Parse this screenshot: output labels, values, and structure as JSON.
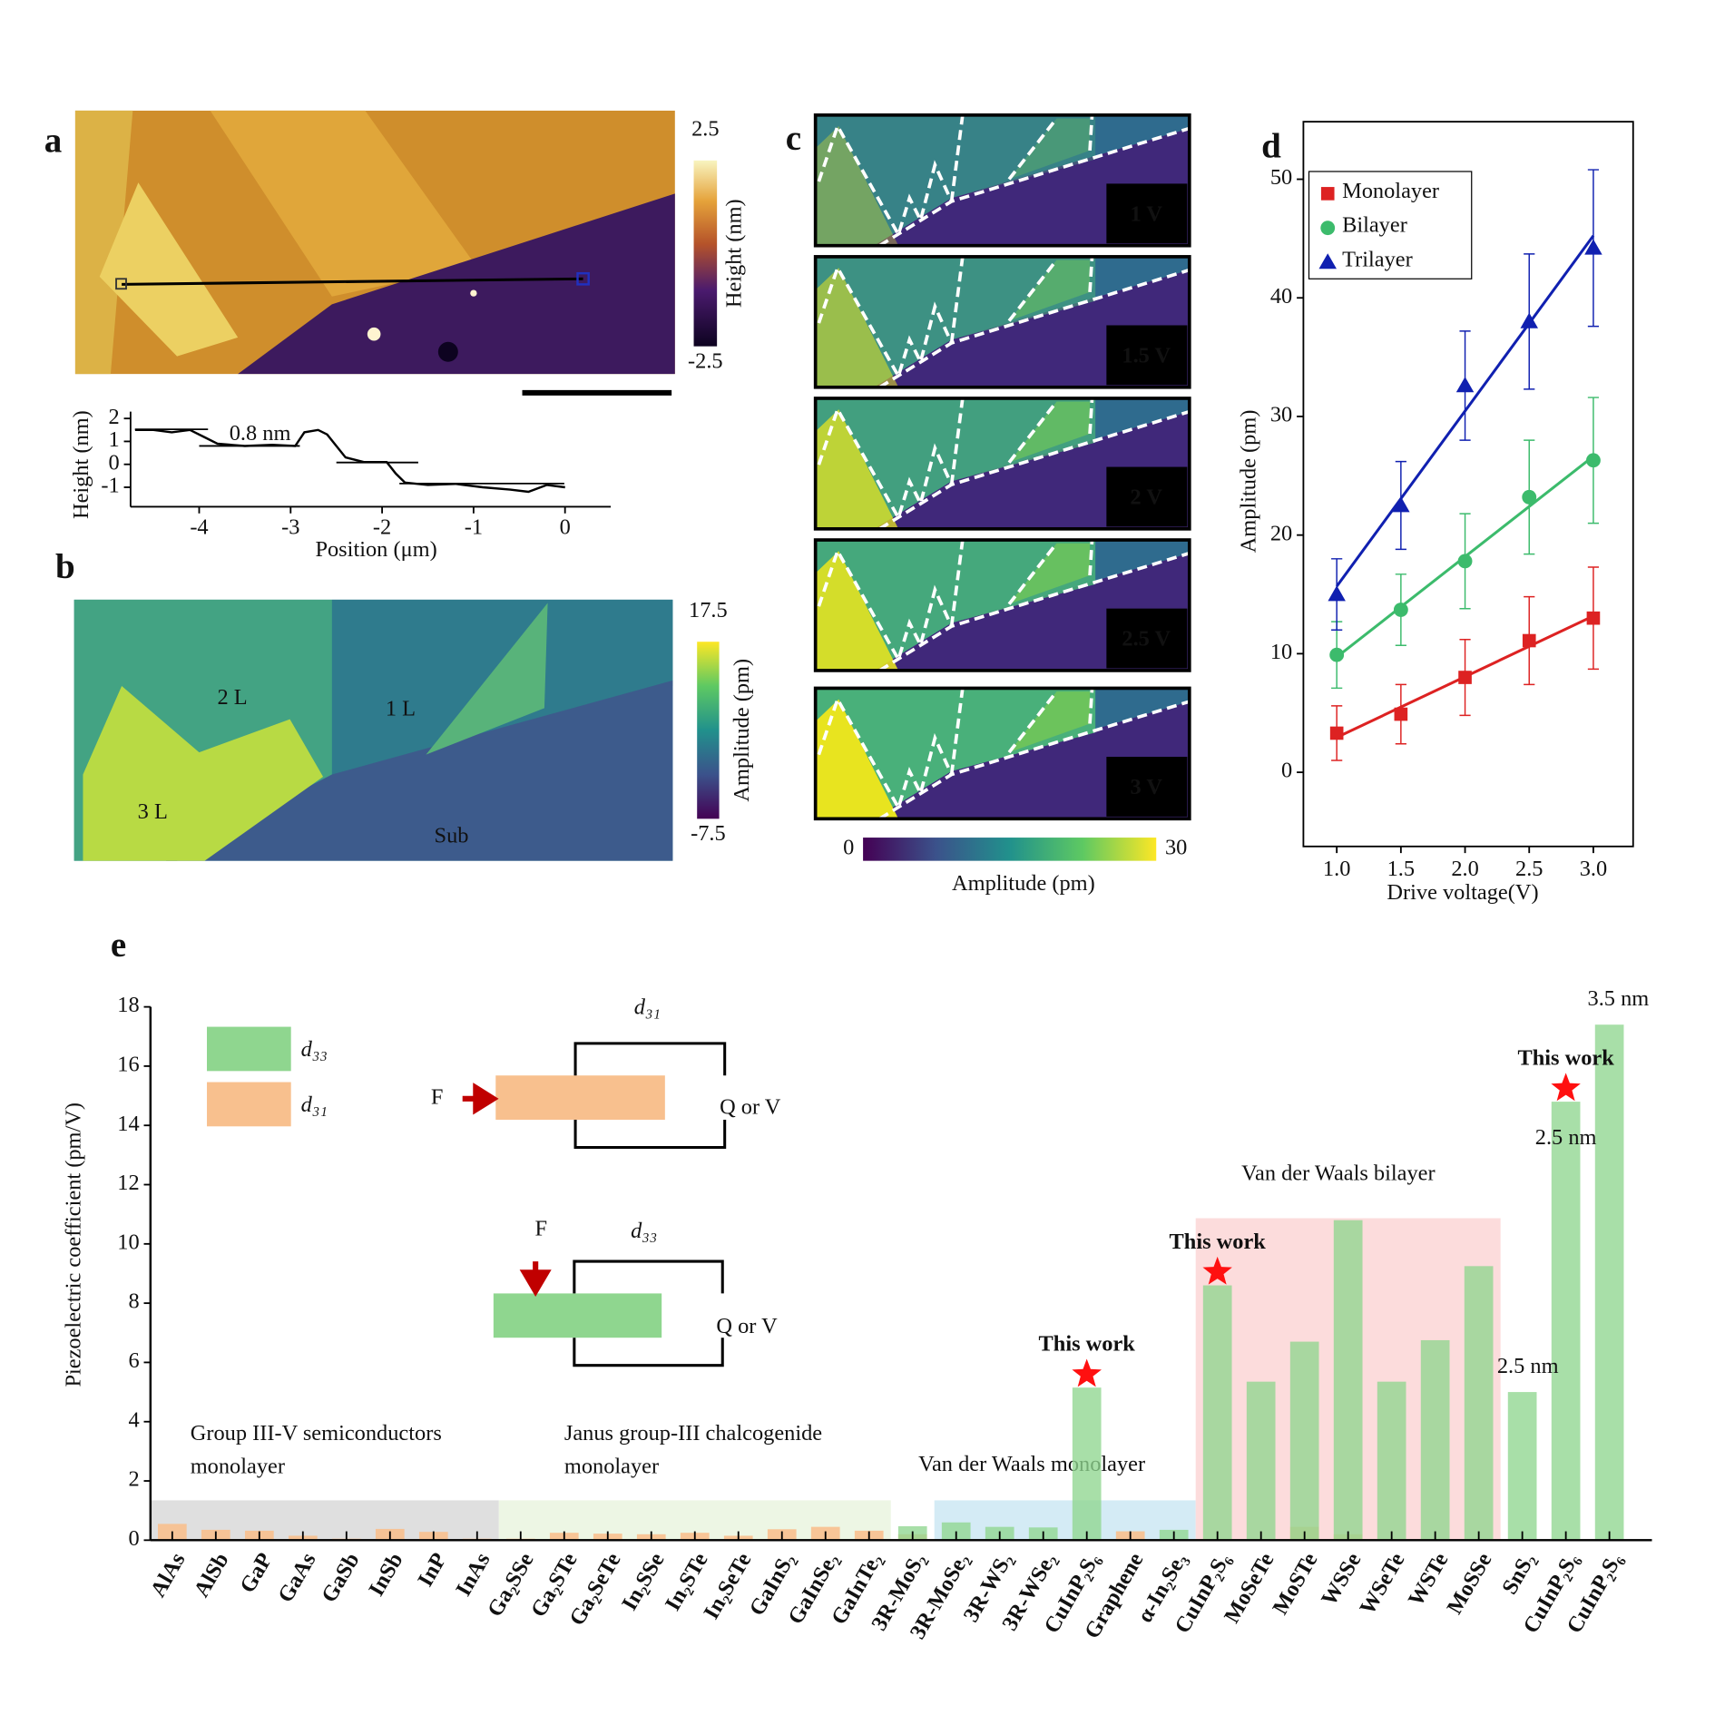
{
  "chart_data": [
    {
      "type": "image",
      "panel": "a",
      "colorbar": {
        "label": "Height (nm)",
        "lim": [
          -2.5,
          2.5
        ],
        "ticks": [
          2.5,
          -2.5
        ]
      }
    },
    {
      "type": "line",
      "xlabel": "Position (μm)",
      "ylabel": "Height (nm)",
      "annotation": "0.8 nm",
      "color": "#000000",
      "x": [
        -4.7,
        -4.5,
        -4.3,
        -4.1,
        -3.95,
        -3.8,
        -3.5,
        -3.2,
        -2.95,
        -2.85,
        -2.7,
        -2.6,
        -2.5,
        -2.4,
        -2.2,
        -1.95,
        -1.85,
        -1.75,
        -1.5,
        -1.2,
        -0.9,
        -0.6,
        -0.4,
        -0.2,
        0
      ],
      "values": [
        1.5,
        1.5,
        1.4,
        1.5,
        1.2,
        0.9,
        0.8,
        0.85,
        0.8,
        1.4,
        1.5,
        1.3,
        0.8,
        0.3,
        0.1,
        0.1,
        -0.4,
        -0.8,
        -0.9,
        -0.85,
        -1.0,
        -1.1,
        -1.2,
        -0.9,
        -1.0
      ],
      "xlim": [
        -4.75,
        0.5
      ],
      "xticks": [
        -4,
        -3,
        -2,
        -1,
        0
      ],
      "ylim": [
        -1.85,
        2.3
      ],
      "yticks": [
        -1,
        0,
        1,
        2
      ]
    },
    {
      "type": "image",
      "panel": "b",
      "annotations": [
        "2 L",
        "1 L",
        "3 L",
        "Sub"
      ],
      "colorbar": {
        "label": "Amplitude (pm)",
        "lim": [
          -7.5,
          17.5
        ],
        "ticks": [
          17.5,
          -7.5
        ]
      }
    },
    {
      "type": "image",
      "panel": "c",
      "frames": [
        "1 V",
        "1.5 V",
        "2 V",
        "2.5 V",
        "3 V"
      ],
      "colorbar": {
        "label": "Amplitude (pm)",
        "lim": [
          0,
          30
        ],
        "ticks": [
          0,
          30
        ]
      }
    },
    {
      "type": "scatter",
      "panel": "d",
      "xlabel": "Drive voltage(V)",
      "ylabel": "Amplitude (pm)",
      "fit": true,
      "x": [
        1,
        1.5,
        2,
        2.5,
        3
      ],
      "series": [
        {
          "name": "Monolayer",
          "color": "#dd2222",
          "marker": "square",
          "values": [
            3.3,
            4.9,
            8.0,
            11.1,
            13.0
          ],
          "errors": [
            2.3,
            2.5,
            3.2,
            3.7,
            4.3
          ]
        },
        {
          "name": "Bilayer",
          "color": "#3cbb6c",
          "marker": "circle",
          "values": [
            9.9,
            13.7,
            17.8,
            23.2,
            26.3
          ],
          "errors": [
            2.8,
            3.0,
            4.0,
            4.8,
            5.3
          ]
        },
        {
          "name": "Trilayer",
          "color": "#1020b0",
          "marker": "triangle",
          "values": [
            15.0,
            22.5,
            32.6,
            38.0,
            44.2
          ],
          "errors": [
            3.0,
            3.7,
            4.6,
            5.7,
            6.6
          ]
        }
      ],
      "xlim": [
        0.74,
        3.31
      ],
      "xticks": [
        {
          "value": 1,
          "label": "1.0"
        },
        1.5,
        {
          "value": 2,
          "label": "2.0"
        },
        2.5,
        {
          "value": 3,
          "label": "3.0"
        }
      ],
      "ylim": [
        -6.25,
        54.85
      ],
      "yticks": [
        0,
        10,
        20,
        30,
        40,
        50
      ]
    },
    {
      "type": "bar",
      "panel": "e",
      "ylabel": "Piezoelectric coefficient (pm/V)",
      "categories": [
        "AlAs",
        "AlSb",
        "GaP",
        "GaAs",
        "GaSb",
        "InSb",
        "InP",
        "InAs",
        "Ga₂SSe",
        "Ga₂STe",
        "Ga₂SeTe",
        "In₂SSe",
        "In₂STe",
        "In₂SeTe",
        "GaInS₂",
        "GaInSe₂",
        "GaInTe₂",
        "3R-MoS₂",
        "3R-MoSe₂",
        "3R-WS₂",
        "3R-WSe₂",
        "CuInP₂S₆",
        "Graphene",
        "α-In₂Se₃",
        "CuInP₂S₆",
        "MoSeTe",
        "MoSTe",
        "WSSe",
        "WSeTe",
        "WSTe",
        "MoSSe",
        "SnS₂",
        "CuInP₂S₆",
        "CuInP₂S₆"
      ],
      "series": [
        {
          "name": "d₃₃",
          "color": "#8fd68f",
          "values": [
            null,
            null,
            null,
            null,
            null,
            null,
            null,
            null,
            null,
            null,
            null,
            null,
            null,
            null,
            null,
            null,
            null,
            0.47,
            0.6,
            0.45,
            0.43,
            5.15,
            null,
            0.35,
            8.6,
            5.35,
            6.7,
            10.8,
            5.35,
            6.75,
            9.25,
            5.0,
            14.8,
            17.4
          ]
        },
        {
          "name": "d₃₁",
          "color": "#f8c08e",
          "values": [
            0.55,
            0.35,
            0.32,
            0.15,
            0.05,
            0.38,
            0.28,
            0.05,
            0.05,
            0.25,
            0.22,
            0.2,
            0.25,
            0.15,
            0.37,
            0.45,
            0.32,
            0.2,
            null,
            null,
            null,
            null,
            0.3,
            null,
            null,
            null,
            0.45,
            0.2,
            null,
            null,
            null,
            null,
            null,
            null
          ]
        }
      ],
      "label_highlight": {
        "color": "#ff0000",
        "categories": [
          21,
          24,
          32
        ]
      },
      "annotations": [
        "This work",
        "This work",
        "This work",
        "2.5 nm",
        "2.5 nm",
        "3.5 nm"
      ],
      "regions": [
        [
          "Group III-V semiconductors",
          "monolayer"
        ],
        [
          "Janus group-III chalcogenide",
          "monolayer"
        ],
        [
          "Van der Waals monolayer"
        ],
        [
          "Van der Waals bilayer"
        ]
      ],
      "inset": {
        "d31": "d₃₁",
        "d33": "d₃₃",
        "force": "F",
        "output": "Q or V"
      },
      "ylim": [
        0,
        18
      ],
      "yticks": [
        0,
        2,
        4,
        6,
        8,
        10,
        12,
        14,
        16,
        18
      ]
    }
  ]
}
